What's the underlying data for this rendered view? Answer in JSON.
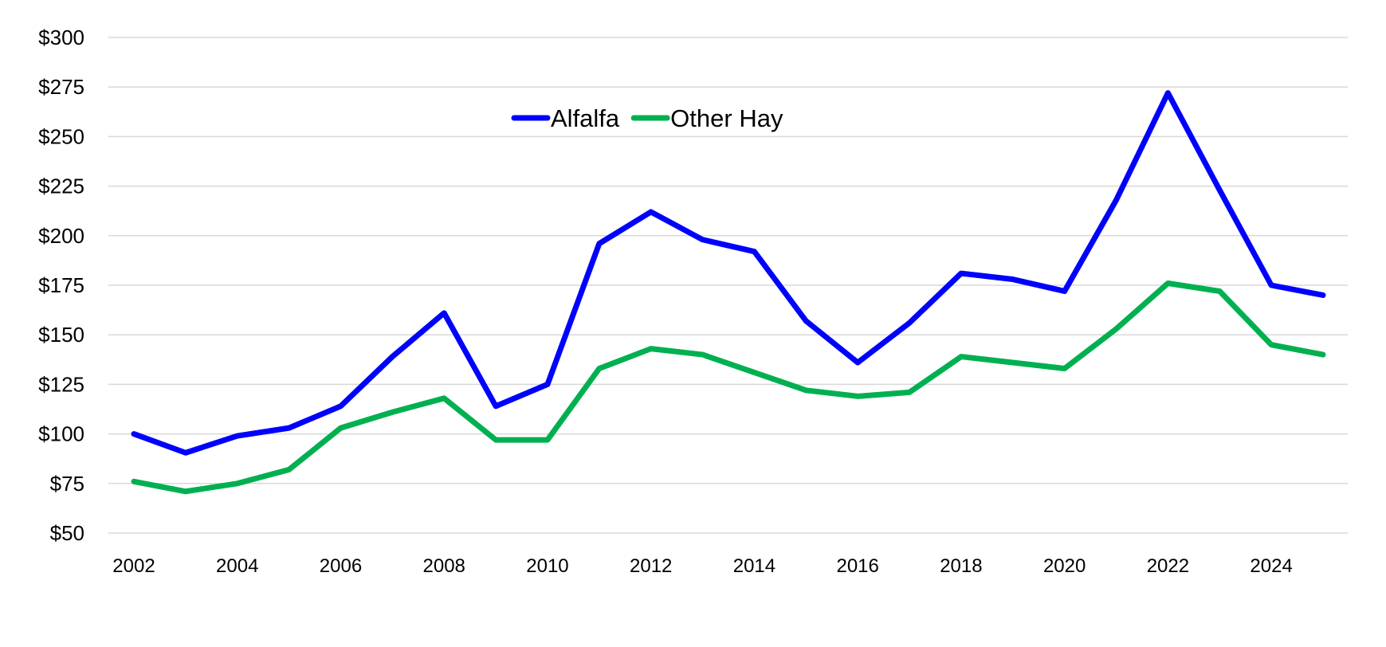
{
  "chart_data": {
    "type": "line",
    "title": "",
    "xlabel": "",
    "ylabel": "",
    "x": [
      2002,
      2003,
      2004,
      2005,
      2006,
      2007,
      2008,
      2009,
      2010,
      2011,
      2012,
      2013,
      2014,
      2015,
      2016,
      2017,
      2018,
      2019,
      2020,
      2021,
      2022,
      2023,
      2024,
      2025
    ],
    "xticks": [
      "2002",
      "2004",
      "2006",
      "2008",
      "2010",
      "2012",
      "2014",
      "2016",
      "2018",
      "2020",
      "2022",
      "2024"
    ],
    "yticks": [
      "$50",
      "$75",
      "$100",
      "$125",
      "$150",
      "$175",
      "$200",
      "$225",
      "$250",
      "$275",
      "$300"
    ],
    "ylim": [
      50,
      300
    ],
    "grid": "horizontal",
    "legend_placement": "top-center",
    "series": [
      {
        "name": "Alfalfa",
        "color": "#0000FF",
        "values": [
          100,
          90.5,
          99,
          103,
          114,
          139,
          161,
          114,
          125,
          196,
          212,
          198,
          192,
          157,
          136,
          156,
          181,
          178,
          172,
          218,
          272,
          223,
          175,
          170
        ]
      },
      {
        "name": "Other Hay",
        "color": "#00B050",
        "values": [
          76,
          71,
          75,
          82,
          103,
          111,
          118,
          97,
          97,
          133,
          143,
          140,
          131,
          122,
          119,
          121,
          139,
          136,
          133,
          153,
          176,
          172,
          145,
          140
        ]
      }
    ]
  }
}
